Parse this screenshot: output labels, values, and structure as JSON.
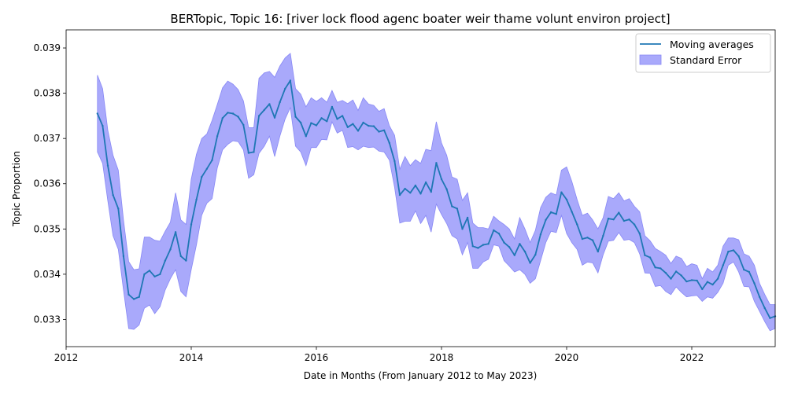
{
  "chart_data": {
    "type": "line",
    "title": "BERTopic, Topic 16: [river lock flood agenc boater weir thame volunt environ project]",
    "xlabel": "Date in Months (From January 2012 to May 2023)",
    "ylabel": "Topic Proportion",
    "xlim": [
      "2012-01",
      "2023-05"
    ],
    "ylim": [
      0.0324,
      0.0394
    ],
    "x_ticks": [
      "2012",
      "2014",
      "2016",
      "2018",
      "2020",
      "2022"
    ],
    "y_ticks": [
      "0.033",
      "0.034",
      "0.035",
      "0.036",
      "0.037",
      "0.038",
      "0.039"
    ],
    "grid": false,
    "legend_position": "top-right",
    "colors": {
      "line": "#1f77b4",
      "band": "#a9a9fb"
    },
    "series": [
      {
        "name": "Moving averages",
        "x": [
          "2012-07",
          "2012-08",
          "2012-09",
          "2012-10",
          "2012-11",
          "2012-12",
          "2013-01",
          "2013-02",
          "2013-03",
          "2013-04",
          "2013-05",
          "2013-06",
          "2013-07",
          "2013-08",
          "2013-09",
          "2013-10",
          "2013-11",
          "2013-12",
          "2014-01",
          "2014-02",
          "2014-03",
          "2014-04",
          "2014-05",
          "2014-06",
          "2014-07",
          "2014-08",
          "2014-09",
          "2014-10",
          "2014-11",
          "2014-12",
          "2015-01",
          "2015-02",
          "2015-03",
          "2015-04",
          "2015-05",
          "2015-06",
          "2015-07",
          "2015-08",
          "2015-09",
          "2015-10",
          "2015-11",
          "2015-12",
          "2016-01",
          "2016-02",
          "2016-03",
          "2016-04",
          "2016-05",
          "2016-06",
          "2016-07",
          "2016-08",
          "2016-09",
          "2016-10",
          "2016-11",
          "2016-12",
          "2017-01",
          "2017-02",
          "2017-03",
          "2017-04",
          "2017-05",
          "2017-06",
          "2017-07",
          "2017-08",
          "2017-09",
          "2017-10",
          "2017-11",
          "2017-12",
          "2018-01",
          "2018-02",
          "2018-03",
          "2018-04",
          "2018-05",
          "2018-06",
          "2018-07",
          "2018-08",
          "2018-09",
          "2018-10",
          "2018-11",
          "2018-12",
          "2019-01",
          "2019-02",
          "2019-03",
          "2019-04",
          "2019-05",
          "2019-06",
          "2019-07",
          "2019-08",
          "2019-09",
          "2019-10",
          "2019-11",
          "2019-12",
          "2020-01",
          "2020-02",
          "2020-03",
          "2020-04",
          "2020-05",
          "2020-06",
          "2020-07",
          "2020-08",
          "2020-09",
          "2020-10",
          "2020-11",
          "2020-12",
          "2021-01",
          "2021-02",
          "2021-03",
          "2021-04",
          "2021-05",
          "2021-06",
          "2021-07",
          "2021-08",
          "2021-09",
          "2021-10",
          "2021-11",
          "2021-12",
          "2022-01",
          "2022-02",
          "2022-03",
          "2022-04",
          "2022-05",
          "2022-06",
          "2022-07",
          "2022-08",
          "2022-09",
          "2022-10",
          "2022-11",
          "2022-12",
          "2023-01",
          "2023-02",
          "2023-03",
          "2023-04",
          "2023-05"
        ],
        "values": [
          0.03755,
          0.03728,
          0.0364,
          0.03575,
          0.03545,
          0.0344,
          0.03355,
          0.03345,
          0.0335,
          0.034,
          0.03408,
          0.03395,
          0.034,
          0.0343,
          0.03455,
          0.03493,
          0.0344,
          0.0343,
          0.0351,
          0.03565,
          0.03615,
          0.03633,
          0.03652,
          0.03705,
          0.03745,
          0.03757,
          0.03755,
          0.03748,
          0.0373,
          0.03668,
          0.0367,
          0.0375,
          0.03763,
          0.03776,
          0.03746,
          0.0378,
          0.0381,
          0.03828,
          0.03748,
          0.03735,
          0.03705,
          0.03734,
          0.03729,
          0.03745,
          0.03738,
          0.0377,
          0.03743,
          0.0375,
          0.03725,
          0.03732,
          0.03717,
          0.03735,
          0.03728,
          0.03727,
          0.03715,
          0.03718,
          0.0369,
          0.0365,
          0.03575,
          0.03589,
          0.0358,
          0.03596,
          0.03578,
          0.03603,
          0.03582,
          0.03646,
          0.0361,
          0.03588,
          0.0355,
          0.03545,
          0.035,
          0.03525,
          0.03462,
          0.03458,
          0.03465,
          0.03467,
          0.03497,
          0.0349,
          0.0347,
          0.0346,
          0.03442,
          0.03467,
          0.0345,
          0.03425,
          0.03443,
          0.03488,
          0.0352,
          0.03537,
          0.03533,
          0.03581,
          0.03565,
          0.03538,
          0.0351,
          0.03478,
          0.03481,
          0.03475,
          0.0345,
          0.03485,
          0.03523,
          0.03521,
          0.03536,
          0.03518,
          0.03521,
          0.0351,
          0.0349,
          0.03442,
          0.03437,
          0.03415,
          0.03413,
          0.03403,
          0.0339,
          0.03406,
          0.03397,
          0.03384,
          0.03387,
          0.03386,
          0.03367,
          0.03383,
          0.03377,
          0.0339,
          0.0342,
          0.0345,
          0.03453,
          0.0344,
          0.0341,
          0.03405,
          0.0338,
          0.0335,
          0.03325,
          0.03303,
          0.03307
        ]
      }
    ],
    "error_band": {
      "name": "Standard Error",
      "upper": [
        0.0384,
        0.0381,
        0.03718,
        0.03663,
        0.0363,
        0.0352,
        0.03428,
        0.0341,
        0.03412,
        0.03482,
        0.03482,
        0.03475,
        0.03473,
        0.03495,
        0.03515,
        0.0358,
        0.0352,
        0.0351,
        0.0361,
        0.03665,
        0.037,
        0.0371,
        0.0374,
        0.03775,
        0.03812,
        0.03827,
        0.0382,
        0.03808,
        0.03783,
        0.03724,
        0.03724,
        0.03833,
        0.03845,
        0.03848,
        0.03835,
        0.0386,
        0.03878,
        0.03888,
        0.0381,
        0.03798,
        0.0377,
        0.0379,
        0.03782,
        0.0379,
        0.0378,
        0.03806,
        0.0378,
        0.03784,
        0.03777,
        0.03785,
        0.03762,
        0.0379,
        0.03776,
        0.03773,
        0.0376,
        0.03766,
        0.03728,
        0.03707,
        0.03632,
        0.0366,
        0.0364,
        0.03653,
        0.03645,
        0.03676,
        0.03673,
        0.03737,
        0.0369,
        0.03663,
        0.03615,
        0.0361,
        0.03563,
        0.0358,
        0.03513,
        0.03503,
        0.03503,
        0.035,
        0.03528,
        0.03518,
        0.0351,
        0.035,
        0.03478,
        0.03525,
        0.035,
        0.0347,
        0.03497,
        0.03547,
        0.0357,
        0.0358,
        0.03575,
        0.0363,
        0.03637,
        0.03605,
        0.03565,
        0.0353,
        0.03535,
        0.0352,
        0.035,
        0.03525,
        0.03572,
        0.03567,
        0.0358,
        0.03562,
        0.03567,
        0.0355,
        0.03538,
        0.03485,
        0.03474,
        0.03457,
        0.0345,
        0.03442,
        0.03424,
        0.0344,
        0.03435,
        0.03417,
        0.03423,
        0.0342,
        0.0339,
        0.03413,
        0.03405,
        0.0342,
        0.03462,
        0.0348,
        0.0348,
        0.03476,
        0.03445,
        0.0344,
        0.0342,
        0.0338,
        0.03355,
        0.03333,
        0.03333
      ],
      "lower": [
        0.0367,
        0.03645,
        0.03562,
        0.03485,
        0.03455,
        0.03365,
        0.0328,
        0.03278,
        0.03288,
        0.03325,
        0.03332,
        0.03313,
        0.03328,
        0.03365,
        0.0339,
        0.0341,
        0.03362,
        0.0335,
        0.0341,
        0.03465,
        0.0353,
        0.03557,
        0.03567,
        0.03635,
        0.03675,
        0.03687,
        0.03695,
        0.03693,
        0.03675,
        0.03612,
        0.0362,
        0.03667,
        0.03683,
        0.03705,
        0.0366,
        0.03705,
        0.03743,
        0.03768,
        0.03683,
        0.0367,
        0.0364,
        0.0368,
        0.0368,
        0.03698,
        0.03697,
        0.03737,
        0.03712,
        0.03718,
        0.0368,
        0.03682,
        0.03675,
        0.03683,
        0.0368,
        0.03681,
        0.03672,
        0.0367,
        0.03652,
        0.03592,
        0.03513,
        0.03517,
        0.03517,
        0.0354,
        0.03512,
        0.0353,
        0.03493,
        0.03555,
        0.03532,
        0.03512,
        0.03485,
        0.03478,
        0.03443,
        0.0347,
        0.03413,
        0.03413,
        0.03427,
        0.03433,
        0.03465,
        0.03462,
        0.0343,
        0.03418,
        0.03405,
        0.0341,
        0.034,
        0.0338,
        0.0339,
        0.0343,
        0.0347,
        0.03495,
        0.03492,
        0.0353,
        0.0349,
        0.0347,
        0.03455,
        0.0342,
        0.03427,
        0.03425,
        0.03403,
        0.03443,
        0.03473,
        0.03475,
        0.03492,
        0.03475,
        0.03477,
        0.0347,
        0.03445,
        0.03403,
        0.03402,
        0.03373,
        0.03375,
        0.03362,
        0.03355,
        0.03372,
        0.0336,
        0.0335,
        0.03352,
        0.03353,
        0.0334,
        0.0335,
        0.03347,
        0.0336,
        0.0338,
        0.0342,
        0.03427,
        0.03405,
        0.03373,
        0.03372,
        0.0334,
        0.03318,
        0.03295,
        0.03275,
        0.0328
      ]
    },
    "legend": [
      "Moving averages",
      "Standard Error"
    ]
  }
}
